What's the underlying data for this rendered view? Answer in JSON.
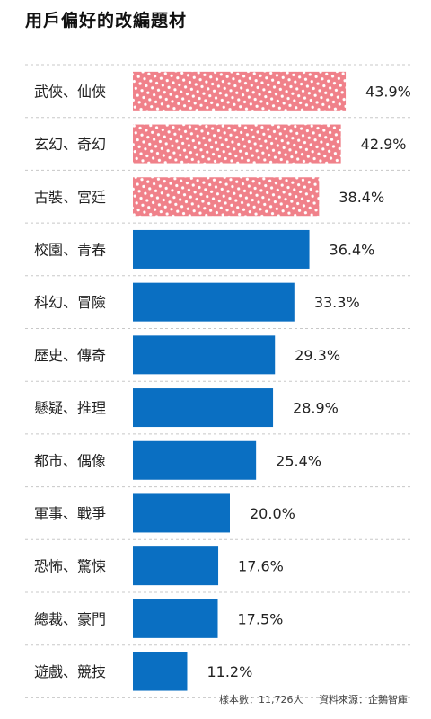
{
  "chart_data": {
    "type": "bar",
    "orientation": "horizontal",
    "title": "用戶偏好的改編題材",
    "categories": [
      "武俠、仙俠",
      "玄幻、奇幻",
      "古裝、宮廷",
      "校園、青春",
      "科幻、冒險",
      "歷史、傳奇",
      "懸疑、推理",
      "都市、偶像",
      "軍事、戰爭",
      "恐怖、驚悚",
      "總裁、豪門",
      "遊戲、競技"
    ],
    "values": [
      43.9,
      42.9,
      38.4,
      36.4,
      33.3,
      29.3,
      28.9,
      25.4,
      20.0,
      17.6,
      17.5,
      11.2
    ],
    "value_labels": [
      "43.9%",
      "42.9%",
      "38.4%",
      "36.4%",
      "33.3%",
      "29.3%",
      "28.9%",
      "25.4%",
      "20.0%",
      "17.6%",
      "17.5%",
      "11.2%"
    ],
    "highlight_top_n": 3,
    "highlight_style": "dotted",
    "xlim": [
      0,
      50
    ],
    "grid": "dashed separators",
    "colors": {
      "highlight": "#f0818a",
      "highlight_dots": "#ffffff",
      "normal": "#0a6fc2",
      "separator": "#c8c8c8"
    }
  },
  "footer": {
    "sample": "樣本數：11,726人",
    "source": "資料來源：企鵝智庫"
  }
}
